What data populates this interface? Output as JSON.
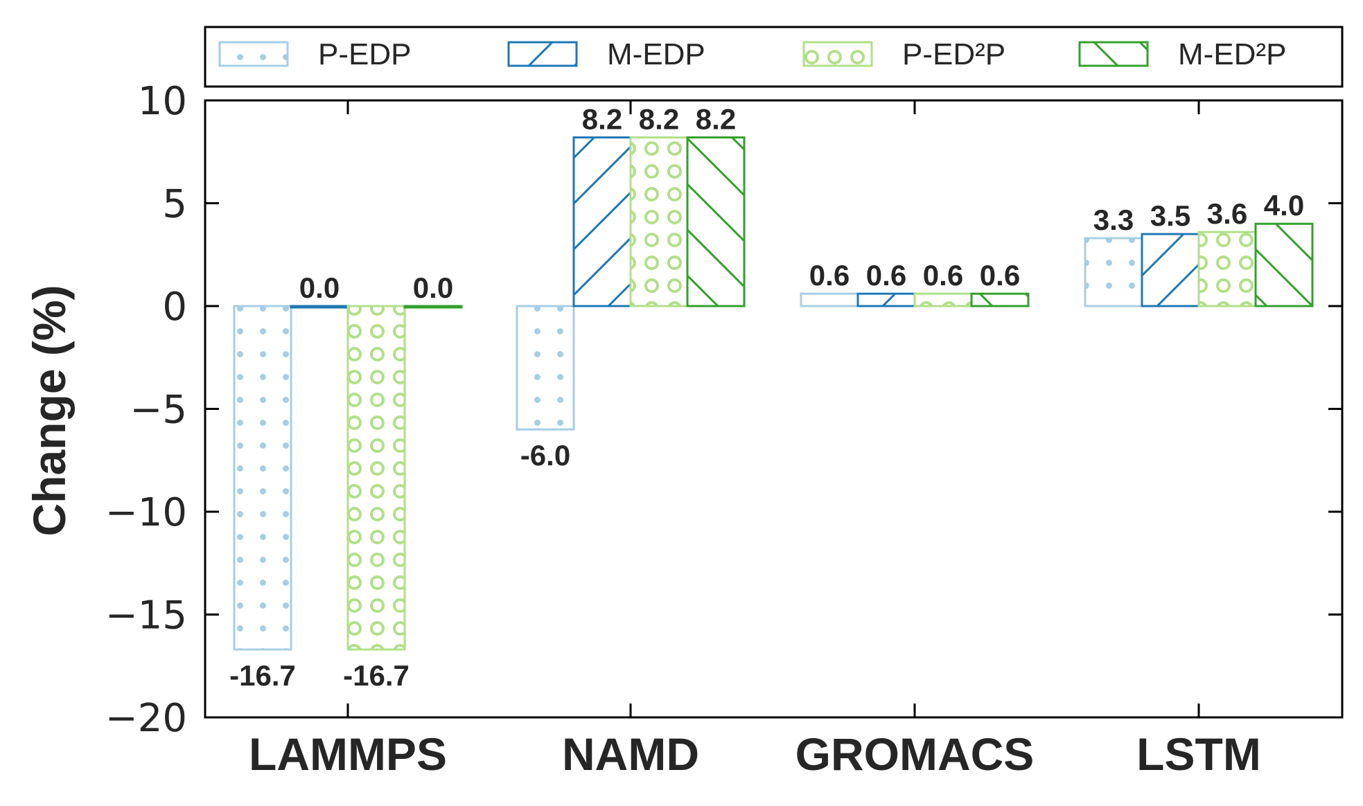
{
  "chart_data": {
    "type": "bar",
    "categories": [
      "LAMMPS",
      "NAMD",
      "GROMACS",
      "LSTM"
    ],
    "series": [
      {
        "name": "P-EDP",
        "values": [
          -16.7,
          -6.0,
          0.6,
          3.3
        ],
        "color": "#a6cee3",
        "pattern": "dots"
      },
      {
        "name": "M-EDP",
        "values": [
          0.0,
          8.2,
          0.6,
          3.5
        ],
        "color": "#1f78b4",
        "pattern": "forward-slash"
      },
      {
        "name": "P-ED²P",
        "values": [
          -16.7,
          8.2,
          0.6,
          3.6
        ],
        "color": "#b2df8a",
        "pattern": "circles"
      },
      {
        "name": "M-ED²P",
        "values": [
          0.0,
          8.2,
          0.6,
          4.0
        ],
        "color": "#33a02c",
        "pattern": "back-slash"
      }
    ],
    "data_labels": [
      [
        "-16.7",
        "-6.0",
        "0.6",
        "3.3"
      ],
      [
        "0.0",
        "8.2",
        "0.6",
        "3.5"
      ],
      [
        "-16.7",
        "8.2",
        "0.6",
        "3.6"
      ],
      [
        "0.0",
        "8.2",
        "0.6",
        "4.0"
      ]
    ],
    "ylabel": "Change (%)",
    "xlabel": "",
    "ylim": [
      -20,
      10
    ],
    "yticks": [
      10,
      5,
      0,
      -5,
      -10,
      -15,
      -20
    ],
    "ytick_labels": [
      "10",
      "5",
      "0",
      "−5",
      "−10",
      "−15",
      "−20"
    ],
    "grid": false,
    "legend_position": "top"
  }
}
